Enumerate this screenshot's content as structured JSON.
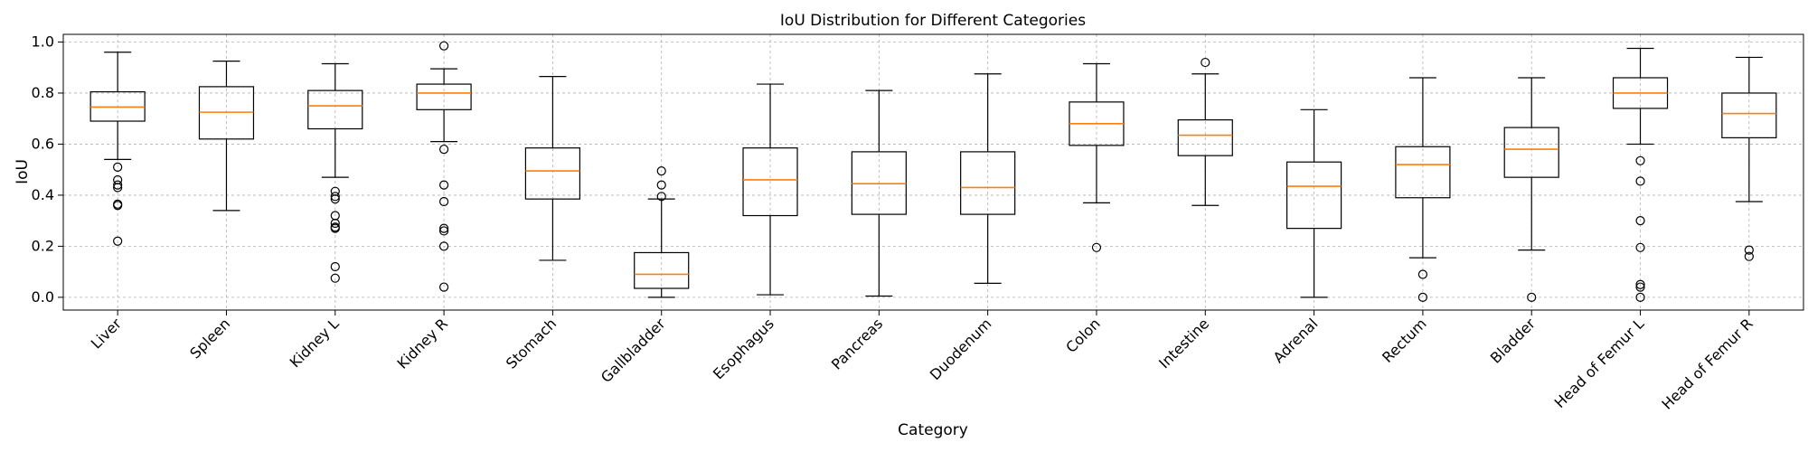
{
  "chart_data": {
    "type": "box",
    "title": "IoU Distribution for Different Categories",
    "xlabel": "Category",
    "ylabel": "IoU",
    "ylim": [
      -0.05,
      1.03
    ],
    "yticks": [
      "0.0",
      "0.2",
      "0.4",
      "0.6",
      "0.8",
      "1.0"
    ],
    "grid": true,
    "colors": {
      "box": "#000000",
      "median": "#ff7f0e",
      "grid": "#b0b0b0"
    },
    "categories": [
      "Liver",
      "Spleen",
      "Kidney L",
      "Kidney R",
      "Stomach",
      "Gallbladder",
      "Esophagus",
      "Pancreas",
      "Duodenum",
      "Colon",
      "Intestine",
      "Adrenal",
      "Rectum",
      "Bladder",
      "Head of Femur L",
      "Head of Femur R"
    ],
    "boxes": [
      {
        "whisker_low": 0.54,
        "q1": 0.69,
        "median": 0.745,
        "q3": 0.805,
        "whisker_high": 0.96,
        "outliers": [
          0.51,
          0.46,
          0.44,
          0.43,
          0.365,
          0.36,
          0.22
        ]
      },
      {
        "whisker_low": 0.34,
        "q1": 0.62,
        "median": 0.725,
        "q3": 0.825,
        "whisker_high": 0.925,
        "outliers": []
      },
      {
        "whisker_low": 0.47,
        "q1": 0.66,
        "median": 0.75,
        "q3": 0.81,
        "whisker_high": 0.915,
        "outliers": [
          0.415,
          0.395,
          0.385,
          0.32,
          0.29,
          0.275,
          0.27,
          0.12,
          0.075
        ]
      },
      {
        "whisker_low": 0.61,
        "q1": 0.735,
        "median": 0.8,
        "q3": 0.835,
        "whisker_high": 0.895,
        "outliers": [
          0.985,
          0.58,
          0.44,
          0.375,
          0.27,
          0.26,
          0.2,
          0.04
        ]
      },
      {
        "whisker_low": 0.145,
        "q1": 0.385,
        "median": 0.495,
        "q3": 0.585,
        "whisker_high": 0.865,
        "outliers": []
      },
      {
        "whisker_low": 0.0,
        "q1": 0.035,
        "median": 0.09,
        "q3": 0.175,
        "whisker_high": 0.385,
        "outliers": [
          0.495,
          0.44,
          0.395
        ]
      },
      {
        "whisker_low": 0.01,
        "q1": 0.32,
        "median": 0.46,
        "q3": 0.585,
        "whisker_high": 0.835,
        "outliers": []
      },
      {
        "whisker_low": 0.005,
        "q1": 0.325,
        "median": 0.445,
        "q3": 0.57,
        "whisker_high": 0.81,
        "outliers": []
      },
      {
        "whisker_low": 0.055,
        "q1": 0.325,
        "median": 0.43,
        "q3": 0.57,
        "whisker_high": 0.875,
        "outliers": []
      },
      {
        "whisker_low": 0.37,
        "q1": 0.595,
        "median": 0.68,
        "q3": 0.765,
        "whisker_high": 0.915,
        "outliers": [
          0.195
        ]
      },
      {
        "whisker_low": 0.36,
        "q1": 0.555,
        "median": 0.635,
        "q3": 0.695,
        "whisker_high": 0.875,
        "outliers": [
          0.92
        ]
      },
      {
        "whisker_low": 0.0,
        "q1": 0.27,
        "median": 0.435,
        "q3": 0.53,
        "whisker_high": 0.735,
        "outliers": []
      },
      {
        "whisker_low": 0.155,
        "q1": 0.39,
        "median": 0.52,
        "q3": 0.59,
        "whisker_high": 0.86,
        "outliers": [
          0.09,
          0.0
        ]
      },
      {
        "whisker_low": 0.185,
        "q1": 0.47,
        "median": 0.58,
        "q3": 0.665,
        "whisker_high": 0.86,
        "outliers": [
          0.0
        ]
      },
      {
        "whisker_low": 0.6,
        "q1": 0.74,
        "median": 0.8,
        "q3": 0.86,
        "whisker_high": 0.975,
        "outliers": [
          0.535,
          0.455,
          0.3,
          0.195,
          0.05,
          0.04,
          0.0
        ]
      },
      {
        "whisker_low": 0.375,
        "q1": 0.625,
        "median": 0.72,
        "q3": 0.8,
        "whisker_high": 0.94,
        "outliers": [
          0.185,
          0.16
        ]
      }
    ]
  }
}
